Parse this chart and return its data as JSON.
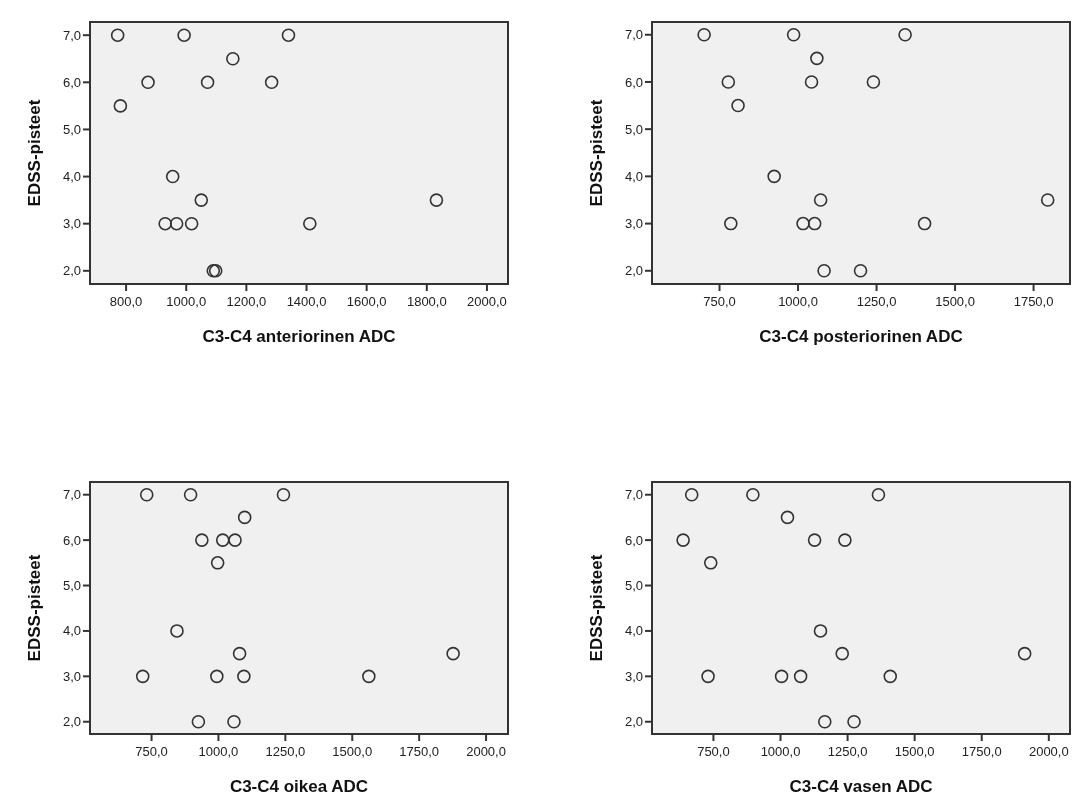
{
  "chart_data": [
    {
      "type": "scatter",
      "xlabel": "C3-C4 anteriorinen ADC",
      "ylabel": "EDSS-pisteet",
      "marker": "circle",
      "color": "#333333",
      "x": [
        772,
        993,
        1340,
        1155,
        873,
        1071,
        1284,
        781,
        955,
        1050,
        1832,
        930,
        968,
        1018,
        1411,
        1090,
        1098
      ],
      "values": [
        7,
        7,
        7,
        6.5,
        6,
        6,
        6,
        5.5,
        4,
        3.5,
        3.5,
        3,
        3,
        3,
        3,
        2,
        2
      ],
      "xlim": [
        680,
        2070
      ],
      "xticks": [
        {
          "value": 800,
          "label": "800,0"
        },
        {
          "value": 1000,
          "label": "1000,0"
        },
        {
          "value": 1200,
          "label": "1200,0"
        },
        {
          "value": 1400,
          "label": "1400,0"
        },
        {
          "value": 1600,
          "label": "1600,0"
        },
        {
          "value": 1800,
          "label": "1800,0"
        },
        {
          "value": 2000,
          "label": "2000,0"
        }
      ],
      "ylim": [
        1.72,
        7.28
      ],
      "yticks": [
        {
          "value": 2,
          "label": "2,0"
        },
        {
          "value": 3,
          "label": "3,0"
        },
        {
          "value": 4,
          "label": "4,0"
        },
        {
          "value": 5,
          "label": "5,0"
        },
        {
          "value": 6,
          "label": "6,0"
        },
        {
          "value": 7,
          "label": "7,0"
        }
      ]
    },
    {
      "type": "scatter",
      "xlabel": "C3-C4 posteriorinen ADC",
      "ylabel": "EDSS-pisteet",
      "marker": "circle",
      "color": "#333333",
      "x": [
        701,
        986,
        1341,
        1060,
        778,
        1043,
        1240,
        809,
        924,
        1072,
        1795,
        786,
        1016,
        1053,
        1403,
        1083,
        1199
      ],
      "values": [
        7,
        7,
        7,
        6.5,
        6,
        6,
        6,
        5.5,
        4,
        3.5,
        3.5,
        3,
        3,
        3,
        3,
        2,
        2
      ],
      "xlim": [
        535,
        1866
      ],
      "xticks": [
        {
          "value": 750,
          "label": "750,0"
        },
        {
          "value": 1000,
          "label": "1000,0"
        },
        {
          "value": 1250,
          "label": "1250,0"
        },
        {
          "value": 1500,
          "label": "1500,0"
        },
        {
          "value": 1750,
          "label": "1750,0"
        }
      ],
      "ylim": [
        1.72,
        7.27
      ],
      "yticks": [
        {
          "value": 2,
          "label": "2,0"
        },
        {
          "value": 3,
          "label": "3,0"
        },
        {
          "value": 4,
          "label": "4,0"
        },
        {
          "value": 5,
          "label": "5,0"
        },
        {
          "value": 6,
          "label": "6,0"
        },
        {
          "value": 7,
          "label": "7,0"
        }
      ]
    },
    {
      "type": "scatter",
      "xlabel": "C3-C4 oikea ADC",
      "ylabel": "EDSS-pisteet",
      "marker": "circle",
      "color": "#333333",
      "x": [
        732,
        896,
        1243,
        1098,
        938,
        1016,
        1062,
        997,
        845,
        1079,
        1877,
        717,
        994,
        1095,
        1562,
        925,
        1058
      ],
      "values": [
        7,
        7,
        7,
        6.5,
        6,
        6,
        6,
        5.5,
        4,
        3.5,
        3.5,
        3,
        3,
        3,
        3,
        2,
        2
      ],
      "xlim": [
        520,
        2082
      ],
      "xticks": [
        {
          "value": 750,
          "label": "750,0"
        },
        {
          "value": 1000,
          "label": "1000,0"
        },
        {
          "value": 1250,
          "label": "1250,0"
        },
        {
          "value": 1500,
          "label": "1500,0"
        },
        {
          "value": 1750,
          "label": "1750,0"
        },
        {
          "value": 2000,
          "label": "2000,0"
        }
      ],
      "ylim": [
        1.73,
        7.28
      ],
      "yticks": [
        {
          "value": 2,
          "label": "2,0"
        },
        {
          "value": 3,
          "label": "3,0"
        },
        {
          "value": 4,
          "label": "4,0"
        },
        {
          "value": 5,
          "label": "5,0"
        },
        {
          "value": 6,
          "label": "6,0"
        },
        {
          "value": 7,
          "label": "7,0"
        }
      ]
    },
    {
      "type": "scatter",
      "xlabel": "C3-C4 vasen ADC",
      "ylabel": "EDSS-pisteet",
      "marker": "circle",
      "color": "#333333",
      "x": [
        669,
        897,
        1365,
        1026,
        637,
        1127,
        1240,
        740,
        1149,
        1230,
        1910,
        730,
        1004,
        1075,
        1409,
        1165,
        1274
      ],
      "values": [
        7,
        7,
        7,
        6.5,
        6,
        6,
        6,
        5.5,
        4,
        3.5,
        3.5,
        3,
        3,
        3,
        3,
        2,
        2
      ],
      "xlim": [
        521,
        2079
      ],
      "xticks": [
        {
          "value": 750,
          "label": "750,0"
        },
        {
          "value": 1000,
          "label": "1000,0"
        },
        {
          "value": 1250,
          "label": "1250,0"
        },
        {
          "value": 1500,
          "label": "1500,0"
        },
        {
          "value": 1750,
          "label": "1750,0"
        },
        {
          "value": 2000,
          "label": "2000,0"
        }
      ],
      "ylim": [
        1.73,
        7.28
      ],
      "yticks": [
        {
          "value": 2,
          "label": "2,0"
        },
        {
          "value": 3,
          "label": "3,0"
        },
        {
          "value": 4,
          "label": "4,0"
        },
        {
          "value": 5,
          "label": "5,0"
        },
        {
          "value": 6,
          "label": "6,0"
        },
        {
          "value": 7,
          "label": "7,0"
        }
      ]
    }
  ]
}
